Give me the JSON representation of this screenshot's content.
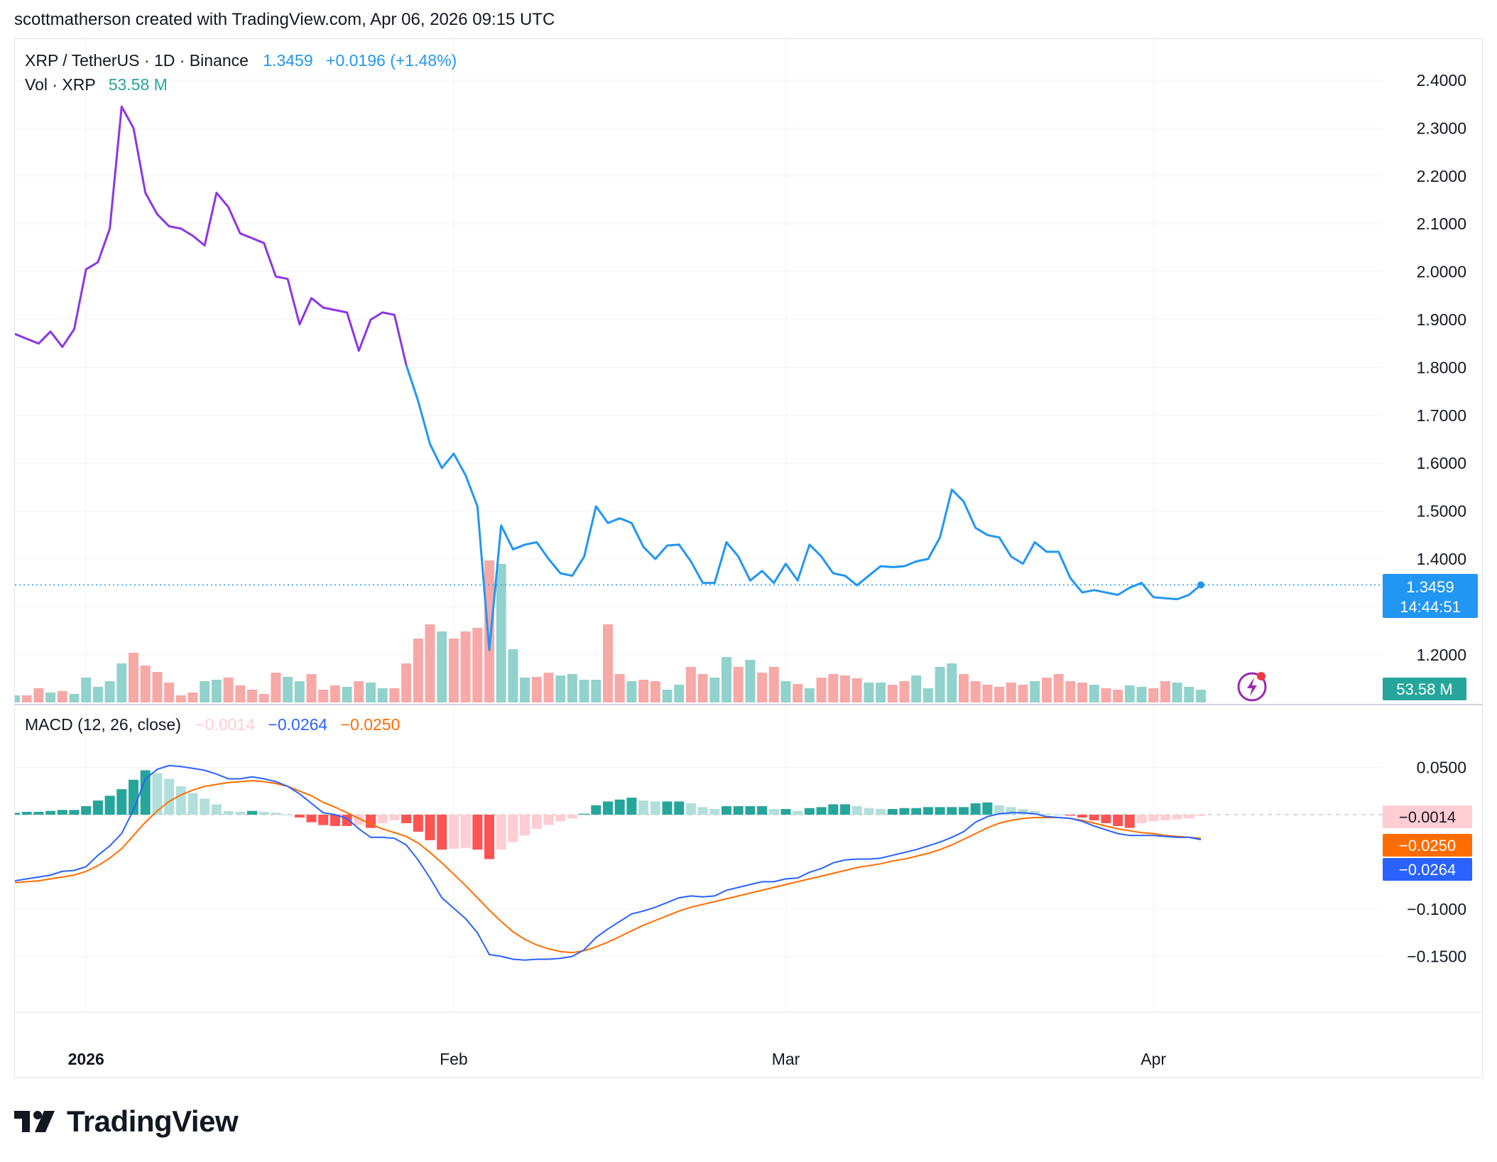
{
  "header": {
    "caption": "scottmatherson created with TradingView.com, Apr 06, 2026 09:15 UTC"
  },
  "legend": {
    "symbol": "XRP / TetherUS · 1D · Binance",
    "last_price": "1.3459",
    "change": "+0.0196 (+1.48%)",
    "vol_label": "Vol · XRP",
    "vol_value": "53.58 M",
    "macd_label": "MACD (12, 26, close)",
    "macd_hist": "−0.0014",
    "macd_line": "−0.0264",
    "macd_signal": "−0.0250"
  },
  "badges": {
    "price": "1.3459",
    "countdown": "14:44:51",
    "volume": "53.58 M",
    "hist": "−0.0014",
    "signal": "−0.0250",
    "macd": "−0.0264"
  },
  "brand": {
    "name": "TradingView"
  },
  "colors": {
    "up": "#26a69a",
    "up_light": "#b2dfdb",
    "down": "#ff5252",
    "down_light": "#ffcdd2",
    "vol_up": "#92d2cc",
    "vol_down": "#f7a9a7",
    "price_purple": "#9c27b0",
    "price_blue": "#2196f3",
    "macd_line": "#2962ff",
    "signal_line": "#ff6d00"
  },
  "chart_data": [
    {
      "type": "line",
      "title": "XRP / TetherUS · 1D · Binance",
      "x_start": "2025-12-26",
      "x_end": "2026-04-06",
      "x_labels": [
        "2026",
        "Feb",
        "Mar",
        "Apr"
      ],
      "y_ticks": [
        "2.4000",
        "2.3000",
        "2.2000",
        "2.1000",
        "2.0000",
        "1.9000",
        "1.8000",
        "1.7000",
        "1.6000",
        "1.5000",
        "1.4000",
        "1.2000"
      ],
      "ylim": [
        1.1,
        2.45
      ],
      "values": [
        1.87,
        1.86,
        1.85,
        1.875,
        1.843,
        1.88,
        2.005,
        2.02,
        2.09,
        2.345,
        2.3,
        2.165,
        2.12,
        2.095,
        2.09,
        2.075,
        2.055,
        2.165,
        2.135,
        2.08,
        2.07,
        2.06,
        1.99,
        1.985,
        1.89,
        1.945,
        1.925,
        1.92,
        1.915,
        1.835,
        1.9,
        1.915,
        1.91,
        1.805,
        1.73,
        1.64,
        1.59,
        1.62,
        1.575,
        1.51,
        1.21,
        1.47,
        1.42,
        1.43,
        1.435,
        1.4,
        1.37,
        1.365,
        1.405,
        1.51,
        1.475,
        1.485,
        1.475,
        1.425,
        1.4,
        1.428,
        1.43,
        1.395,
        1.35,
        1.35,
        1.435,
        1.405,
        1.355,
        1.375,
        1.35,
        1.39,
        1.355,
        1.43,
        1.405,
        1.37,
        1.365,
        1.345,
        1.365,
        1.385,
        1.383,
        1.385,
        1.395,
        1.4,
        1.445,
        1.545,
        1.52,
        1.465,
        1.45,
        1.445,
        1.405,
        1.39,
        1.435,
        1.415,
        1.415,
        1.36,
        1.33,
        1.335,
        1.33,
        1.325,
        1.34,
        1.35,
        1.32,
        1.318,
        1.316,
        1.325,
        1.3459
      ],
      "color_change_index": 33,
      "last_price": 1.3459
    },
    {
      "type": "bar",
      "title": "Vol · XRP",
      "last_value": "53.58 M",
      "values": [
        10,
        10,
        20,
        14,
        16,
        12,
        35,
        22,
        30,
        55,
        70,
        52,
        43,
        28,
        10,
        14,
        30,
        32,
        35,
        24,
        18,
        12,
        42,
        36,
        30,
        40,
        18,
        24,
        22,
        30,
        28,
        20,
        20,
        55,
        90,
        110,
        100,
        90,
        100,
        105,
        200,
        195,
        75,
        35,
        36,
        42,
        38,
        40,
        32,
        32,
        110,
        40,
        30,
        32,
        30,
        18,
        25,
        50,
        40,
        35,
        64,
        50,
        60,
        42,
        50,
        30,
        26,
        20,
        35,
        40,
        38,
        34,
        28,
        28,
        25,
        30,
        38,
        20,
        50,
        55,
        40,
        30,
        25,
        22,
        28,
        25,
        30,
        35,
        40,
        30,
        28,
        25,
        20,
        18,
        24,
        22,
        20,
        30,
        28,
        22,
        18
      ],
      "up": [
        1,
        0,
        0,
        1,
        0,
        1,
        1,
        1,
        1,
        1,
        0,
        0,
        0,
        0,
        0,
        0,
        1,
        1,
        0,
        0,
        0,
        0,
        0,
        1,
        1,
        0,
        0,
        0,
        1,
        0,
        1,
        1,
        0,
        0,
        0,
        0,
        1,
        0,
        0,
        0,
        0,
        1,
        1,
        1,
        0,
        0,
        1,
        1,
        1,
        1,
        0,
        0,
        1,
        0,
        0,
        1,
        1,
        0,
        0,
        1,
        1,
        0,
        1,
        0,
        0,
        1,
        0,
        1,
        0,
        0,
        0,
        0,
        1,
        1,
        0,
        0,
        1,
        1,
        1,
        1,
        0,
        0,
        0,
        0,
        0,
        0,
        1,
        0,
        0,
        0,
        0,
        1,
        0,
        0,
        1,
        1,
        0,
        0,
        1,
        1,
        1
      ]
    },
    {
      "type": "line",
      "title": "MACD (12, 26, close)",
      "y_ticks": [
        "0.0500",
        "−0.1000",
        "−0.1500"
      ],
      "ylim": [
        -0.175,
        0.065
      ],
      "series": [
        {
          "name": "MACD",
          "values": [
            -0.07,
            -0.068,
            -0.066,
            -0.064,
            -0.06,
            -0.059,
            -0.055,
            -0.043,
            -0.033,
            -0.02,
            0.005,
            0.038,
            0.048,
            0.052,
            0.051,
            0.049,
            0.047,
            0.043,
            0.038,
            0.038,
            0.04,
            0.038,
            0.035,
            0.03,
            0.022,
            0.012,
            0.002,
            0.0,
            -0.004,
            -0.015,
            -0.024,
            -0.024,
            -0.025,
            -0.032,
            -0.048,
            -0.067,
            -0.088,
            -0.099,
            -0.11,
            -0.125,
            -0.148,
            -0.15,
            -0.153,
            -0.154,
            -0.153,
            -0.153,
            -0.152,
            -0.15,
            -0.143,
            -0.13,
            -0.121,
            -0.113,
            -0.105,
            -0.102,
            -0.098,
            -0.093,
            -0.088,
            -0.086,
            -0.087,
            -0.086,
            -0.08,
            -0.077,
            -0.074,
            -0.071,
            -0.071,
            -0.068,
            -0.067,
            -0.061,
            -0.057,
            -0.051,
            -0.048,
            -0.047,
            -0.047,
            -0.046,
            -0.043,
            -0.04,
            -0.037,
            -0.033,
            -0.029,
            -0.024,
            -0.018,
            -0.008,
            -0.002,
            0.001,
            0.002,
            0.002,
            0.001,
            -0.002,
            -0.003,
            -0.004,
            -0.007,
            -0.012,
            -0.016,
            -0.02,
            -0.022,
            -0.022,
            -0.022,
            -0.023,
            -0.024,
            -0.024,
            -0.0264
          ]
        },
        {
          "name": "Signal",
          "values": [
            -0.072,
            -0.071,
            -0.07,
            -0.068,
            -0.066,
            -0.064,
            -0.06,
            -0.054,
            -0.046,
            -0.036,
            -0.022,
            -0.008,
            0.004,
            0.014,
            0.021,
            0.026,
            0.03,
            0.032,
            0.034,
            0.035,
            0.036,
            0.035,
            0.033,
            0.03,
            0.025,
            0.02,
            0.013,
            0.008,
            0.002,
            -0.004,
            -0.01,
            -0.015,
            -0.019,
            -0.023,
            -0.03,
            -0.04,
            -0.051,
            -0.063,
            -0.075,
            -0.088,
            -0.101,
            -0.113,
            -0.124,
            -0.132,
            -0.138,
            -0.142,
            -0.145,
            -0.146,
            -0.144,
            -0.14,
            -0.135,
            -0.129,
            -0.123,
            -0.117,
            -0.112,
            -0.107,
            -0.102,
            -0.098,
            -0.095,
            -0.092,
            -0.089,
            -0.086,
            -0.083,
            -0.08,
            -0.077,
            -0.074,
            -0.071,
            -0.068,
            -0.065,
            -0.062,
            -0.059,
            -0.056,
            -0.054,
            -0.052,
            -0.049,
            -0.047,
            -0.044,
            -0.041,
            -0.037,
            -0.032,
            -0.026,
            -0.02,
            -0.014,
            -0.009,
            -0.006,
            -0.004,
            -0.003,
            -0.003,
            -0.003,
            -0.004,
            -0.006,
            -0.009,
            -0.012,
            -0.015,
            -0.017,
            -0.019,
            -0.02,
            -0.022,
            -0.023,
            -0.024,
            -0.025
          ]
        },
        {
          "name": "Histogram",
          "values": [
            0.002,
            0.003,
            0.003,
            0.004,
            0.005,
            0.005,
            0.009,
            0.015,
            0.02,
            0.027,
            0.037,
            0.047,
            0.044,
            0.038,
            0.03,
            0.023,
            0.017,
            0.011,
            0.004,
            0.003,
            0.004,
            0.003,
            0.002,
            0.0,
            -0.003,
            -0.008,
            -0.011,
            -0.012,
            -0.012,
            -0.011,
            -0.014,
            -0.009,
            -0.006,
            -0.009,
            -0.018,
            -0.027,
            -0.037,
            -0.036,
            -0.035,
            -0.037,
            -0.047,
            -0.037,
            -0.029,
            -0.022,
            -0.015,
            -0.011,
            -0.007,
            -0.004,
            0.001,
            0.01,
            0.014,
            0.016,
            0.018,
            0.015,
            0.014,
            0.014,
            0.014,
            0.012,
            0.008,
            0.006,
            0.009,
            0.009,
            0.009,
            0.009,
            0.006,
            0.006,
            0.004,
            0.007,
            0.008,
            0.011,
            0.011,
            0.009,
            0.007,
            0.006,
            0.006,
            0.007,
            0.007,
            0.008,
            0.008,
            0.008,
            0.008,
            0.012,
            0.013,
            0.01,
            0.008,
            0.006,
            0.004,
            0.001,
            0.0,
            -0.001,
            -0.003,
            -0.006,
            -0.009,
            -0.012,
            -0.014,
            -0.009,
            -0.007,
            -0.006,
            -0.005,
            -0.004,
            -0.0014
          ]
        }
      ]
    }
  ]
}
